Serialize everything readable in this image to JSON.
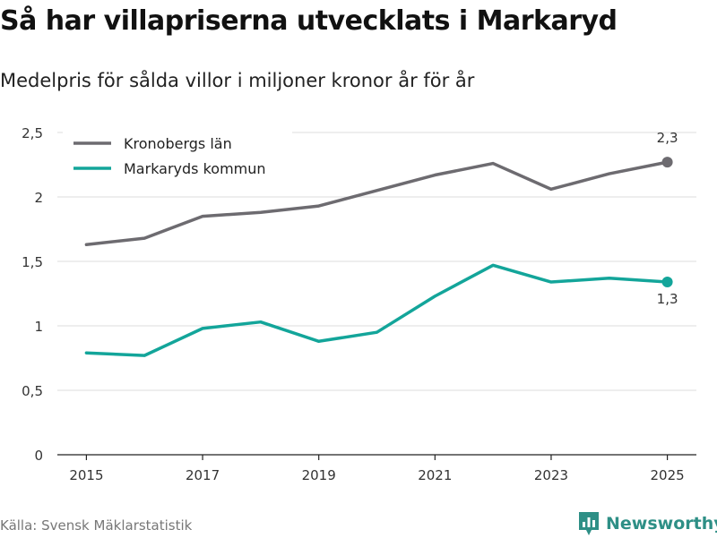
{
  "chart_data": {
    "type": "line",
    "title": "Så har villapriserna utvecklats i Markaryd",
    "subtitle": "Medelpris för sålda villor i miljoner kronor år för år",
    "x": [
      2015,
      2016,
      2017,
      2018,
      2019,
      2020,
      2021,
      2022,
      2023,
      2024,
      2025
    ],
    "x_tick_labels": [
      "2015",
      "2017",
      "2019",
      "2021",
      "2023",
      "2025"
    ],
    "x_tick_values": [
      2015,
      2017,
      2019,
      2021,
      2023,
      2025
    ],
    "y_tick_labels": [
      "0",
      "0,5",
      "1",
      "1,5",
      "2",
      "2,5"
    ],
    "y_tick_values": [
      0,
      0.5,
      1,
      1.5,
      2,
      2.5
    ],
    "ylim": [
      0,
      2.5
    ],
    "xlim": [
      2014.5,
      2025.5
    ],
    "grid": true,
    "legend_position": "top-left",
    "series": [
      {
        "name": "Kronobergs län",
        "color": "#6d6b70",
        "values": [
          1.63,
          1.68,
          1.85,
          1.88,
          1.93,
          2.05,
          2.17,
          2.26,
          2.06,
          2.18,
          2.27
        ],
        "end_label": "2,3"
      },
      {
        "name": "Markaryds kommun",
        "color": "#13a59a",
        "values": [
          0.79,
          0.77,
          0.98,
          1.03,
          0.88,
          0.95,
          1.23,
          1.47,
          1.34,
          1.37,
          1.34
        ],
        "end_label": "1,3"
      }
    ]
  },
  "footer": {
    "source": "Källa: Svensk Mäklarstatistik",
    "brand": "Newsworthy",
    "brand_color": "#2e8f86"
  }
}
